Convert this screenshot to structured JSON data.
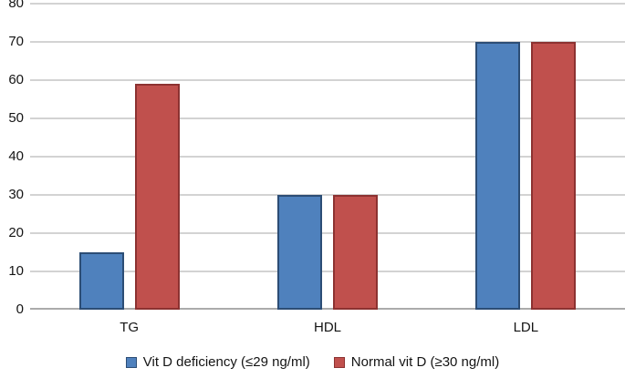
{
  "chart_data": {
    "type": "bar",
    "title": "",
    "xlabel": "",
    "ylabel": "",
    "categories": [
      "TG",
      "HDL",
      "LDL"
    ],
    "series": [
      {
        "name": "Vit D deficiency (≤29 ng/ml)",
        "values": [
          15,
          30,
          70
        ],
        "fill": "#4F81BD",
        "border": "#2C4D75"
      },
      {
        "name": "Normal vit D (≥30 ng/ml)",
        "values": [
          59,
          30,
          70
        ],
        "fill": "#C0504D",
        "border": "#8C3231"
      }
    ],
    "ylim": [
      0,
      80
    ],
    "y_ticks": [
      0,
      10,
      20,
      30,
      40,
      50,
      60,
      70,
      80
    ],
    "grid": true,
    "legend_position": "bottom",
    "colors": {
      "gridline": "#D3D3D3",
      "axis_line": "#ABABAB",
      "text": "#141414",
      "background": "#FFFFFF"
    }
  }
}
